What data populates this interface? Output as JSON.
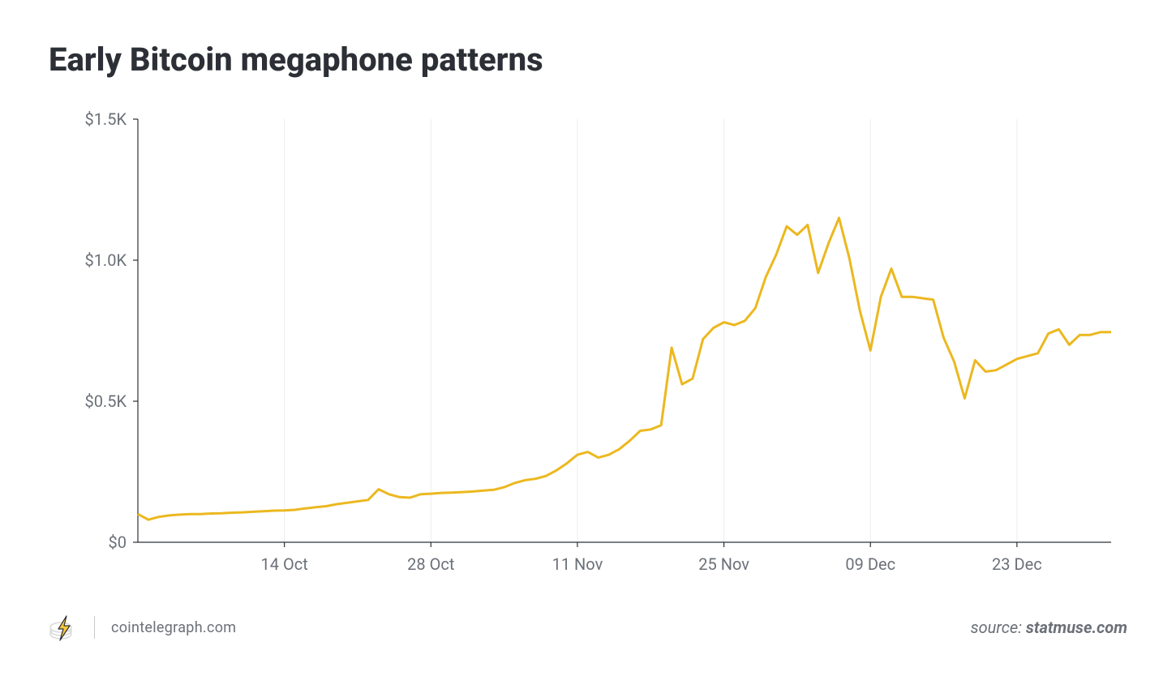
{
  "title": "Early Bitcoin megaphone patterns",
  "footer": {
    "site": "cointelegraph.com",
    "source_prefix": "source: ",
    "source_name": "statmuse.com"
  },
  "chart": {
    "type": "line",
    "background_color": "#ffffff",
    "grid_color": "#ededed",
    "axis_color": "#2c3036",
    "label_color": "#6b7078",
    "label_fontsize": 20,
    "line_color": "#ecb81f",
    "line_width": 3,
    "ylim": [
      0,
      1500
    ],
    "ytick_step": 500,
    "ytick_labels": [
      "$0",
      "$0.5K",
      "$1.0K",
      "$1.5K"
    ],
    "x_index_range": [
      0,
      93
    ],
    "xticks": [
      {
        "i": 14,
        "label": "14 Oct"
      },
      {
        "i": 28,
        "label": "28 Oct"
      },
      {
        "i": 42,
        "label": "11 Nov"
      },
      {
        "i": 56,
        "label": "25 Nov"
      },
      {
        "i": 70,
        "label": "09 Dec"
      },
      {
        "i": 84,
        "label": "23 Dec"
      }
    ],
    "series": [
      {
        "i": 0,
        "v": 100
      },
      {
        "i": 1,
        "v": 80
      },
      {
        "i": 2,
        "v": 90
      },
      {
        "i": 3,
        "v": 95
      },
      {
        "i": 4,
        "v": 98
      },
      {
        "i": 5,
        "v": 100
      },
      {
        "i": 6,
        "v": 100
      },
      {
        "i": 7,
        "v": 102
      },
      {
        "i": 8,
        "v": 103
      },
      {
        "i": 9,
        "v": 105
      },
      {
        "i": 10,
        "v": 106
      },
      {
        "i": 11,
        "v": 108
      },
      {
        "i": 12,
        "v": 110
      },
      {
        "i": 13,
        "v": 112
      },
      {
        "i": 14,
        "v": 113
      },
      {
        "i": 15,
        "v": 115
      },
      {
        "i": 16,
        "v": 120
      },
      {
        "i": 17,
        "v": 124
      },
      {
        "i": 18,
        "v": 128
      },
      {
        "i": 19,
        "v": 135
      },
      {
        "i": 20,
        "v": 140
      },
      {
        "i": 21,
        "v": 145
      },
      {
        "i": 22,
        "v": 150
      },
      {
        "i": 23,
        "v": 188
      },
      {
        "i": 24,
        "v": 170
      },
      {
        "i": 25,
        "v": 160
      },
      {
        "i": 26,
        "v": 158
      },
      {
        "i": 27,
        "v": 170
      },
      {
        "i": 28,
        "v": 172
      },
      {
        "i": 29,
        "v": 175
      },
      {
        "i": 30,
        "v": 176
      },
      {
        "i": 31,
        "v": 178
      },
      {
        "i": 32,
        "v": 180
      },
      {
        "i": 33,
        "v": 183
      },
      {
        "i": 34,
        "v": 186
      },
      {
        "i": 35,
        "v": 195
      },
      {
        "i": 36,
        "v": 210
      },
      {
        "i": 37,
        "v": 220
      },
      {
        "i": 38,
        "v": 225
      },
      {
        "i": 39,
        "v": 235
      },
      {
        "i": 40,
        "v": 255
      },
      {
        "i": 41,
        "v": 280
      },
      {
        "i": 42,
        "v": 310
      },
      {
        "i": 43,
        "v": 320
      },
      {
        "i": 44,
        "v": 300
      },
      {
        "i": 45,
        "v": 310
      },
      {
        "i": 46,
        "v": 330
      },
      {
        "i": 47,
        "v": 360
      },
      {
        "i": 48,
        "v": 395
      },
      {
        "i": 49,
        "v": 400
      },
      {
        "i": 50,
        "v": 415
      },
      {
        "i": 51,
        "v": 690
      },
      {
        "i": 52,
        "v": 560
      },
      {
        "i": 53,
        "v": 580
      },
      {
        "i": 54,
        "v": 720
      },
      {
        "i": 55,
        "v": 760
      },
      {
        "i": 56,
        "v": 780
      },
      {
        "i": 57,
        "v": 770
      },
      {
        "i": 58,
        "v": 785
      },
      {
        "i": 59,
        "v": 830
      },
      {
        "i": 60,
        "v": 940
      },
      {
        "i": 61,
        "v": 1020
      },
      {
        "i": 62,
        "v": 1120
      },
      {
        "i": 63,
        "v": 1090
      },
      {
        "i": 64,
        "v": 1125
      },
      {
        "i": 65,
        "v": 955
      },
      {
        "i": 66,
        "v": 1060
      },
      {
        "i": 67,
        "v": 1150
      },
      {
        "i": 68,
        "v": 1005
      },
      {
        "i": 69,
        "v": 820
      },
      {
        "i": 70,
        "v": 680
      },
      {
        "i": 71,
        "v": 870
      },
      {
        "i": 72,
        "v": 970
      },
      {
        "i": 73,
        "v": 870
      },
      {
        "i": 74,
        "v": 870
      },
      {
        "i": 75,
        "v": 865
      },
      {
        "i": 76,
        "v": 860
      },
      {
        "i": 77,
        "v": 725
      },
      {
        "i": 78,
        "v": 640
      },
      {
        "i": 79,
        "v": 510
      },
      {
        "i": 80,
        "v": 645
      },
      {
        "i": 81,
        "v": 605
      },
      {
        "i": 82,
        "v": 610
      },
      {
        "i": 83,
        "v": 630
      },
      {
        "i": 84,
        "v": 650
      },
      {
        "i": 85,
        "v": 660
      },
      {
        "i": 86,
        "v": 670
      },
      {
        "i": 87,
        "v": 740
      },
      {
        "i": 88,
        "v": 755
      },
      {
        "i": 89,
        "v": 700
      },
      {
        "i": 90,
        "v": 735
      },
      {
        "i": 91,
        "v": 735
      },
      {
        "i": 92,
        "v": 745
      },
      {
        "i": 93,
        "v": 745
      }
    ]
  },
  "logo_colors": {
    "coin": "#d9d9d9",
    "bolt_fill": "#f9c93b",
    "bolt_stroke": "#2c3036"
  }
}
